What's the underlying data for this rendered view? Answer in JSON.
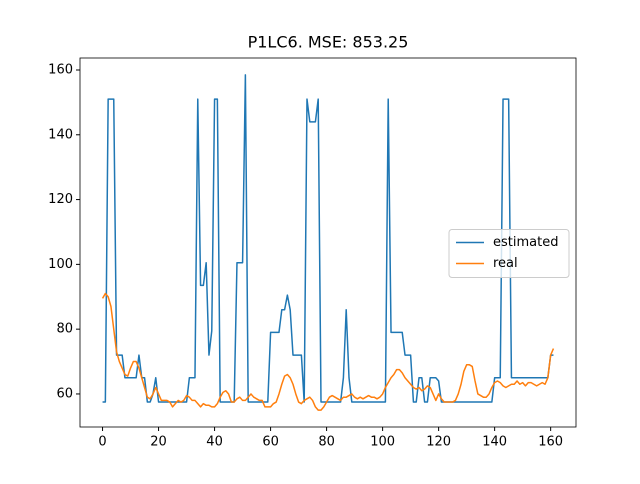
{
  "chart_data": {
    "type": "line",
    "title": "P1LC6. MSE: 853.25",
    "x": [
      0,
      1,
      2,
      3,
      4,
      5,
      6,
      7,
      8,
      9,
      10,
      11,
      12,
      13,
      14,
      15,
      16,
      17,
      18,
      19,
      20,
      21,
      22,
      23,
      24,
      25,
      26,
      27,
      28,
      29,
      30,
      31,
      32,
      33,
      34,
      35,
      36,
      37,
      38,
      39,
      40,
      41,
      42,
      43,
      44,
      45,
      46,
      47,
      48,
      49,
      50,
      51,
      52,
      53,
      54,
      55,
      56,
      57,
      58,
      59,
      60,
      61,
      62,
      63,
      64,
      65,
      66,
      67,
      68,
      69,
      70,
      71,
      72,
      73,
      74,
      75,
      76,
      77,
      78,
      79,
      80,
      81,
      82,
      83,
      84,
      85,
      86,
      87,
      88,
      89,
      90,
      91,
      92,
      93,
      94,
      95,
      96,
      97,
      98,
      99,
      100,
      101,
      102,
      103,
      104,
      105,
      106,
      107,
      108,
      109,
      110,
      111,
      112,
      113,
      114,
      115,
      116,
      117,
      118,
      119,
      120,
      121,
      122,
      123,
      124,
      125,
      126,
      127,
      128,
      129,
      130,
      131,
      132,
      133,
      134,
      135,
      136,
      137,
      138,
      139,
      140,
      141,
      142,
      143,
      144,
      145,
      146,
      147,
      148,
      149,
      150,
      151,
      152,
      153,
      154,
      155,
      156,
      157,
      158,
      159,
      160,
      161
    ],
    "series": [
      {
        "name": "estimated",
        "color": "#1f77b4",
        "values": [
          57.5,
          57.5,
          151,
          151,
          151,
          72,
          72,
          72,
          65,
          65,
          65,
          65,
          65,
          72,
          65,
          65,
          57.5,
          57.5,
          60,
          65,
          57.5,
          57.5,
          57.5,
          57.5,
          57.5,
          57.5,
          57.5,
          57.5,
          57.5,
          57.5,
          57.5,
          65,
          65,
          65,
          151,
          93.5,
          93.5,
          100.5,
          72,
          79.5,
          151,
          151,
          57.5,
          57.5,
          57.5,
          57.5,
          57.5,
          57.5,
          100.5,
          100.5,
          100.5,
          158.5,
          57.5,
          57.5,
          57.5,
          57.5,
          57.5,
          57.5,
          57.5,
          57.5,
          79,
          79,
          79,
          79,
          86,
          86,
          90.5,
          86,
          72,
          72,
          72,
          72,
          57.5,
          151,
          144,
          144,
          144,
          151,
          57.5,
          57.5,
          57.5,
          57.5,
          57.5,
          57.5,
          57.5,
          57.5,
          65,
          86,
          65,
          57.5,
          57.5,
          57.5,
          57.5,
          57.5,
          57.5,
          57.5,
          57.5,
          57.5,
          57.5,
          57.5,
          57.5,
          57.5,
          151,
          79,
          79,
          79,
          79,
          79,
          72,
          72,
          72,
          57.5,
          57.5,
          65,
          65,
          57.5,
          57.5,
          65,
          65,
          65,
          64,
          57.5,
          57.5,
          57.5,
          57.5,
          57.5,
          57.5,
          57.5,
          57.5,
          57.5,
          57.5,
          57.5,
          57.5,
          57.5,
          57.5,
          57.5,
          57.5,
          57.5,
          57.5,
          57.5,
          65,
          65,
          65,
          151,
          151,
          151,
          65,
          65,
          65,
          65,
          65,
          65,
          65,
          65,
          65,
          65,
          65,
          65,
          65,
          65,
          72,
          72
        ]
      },
      {
        "name": "real",
        "color": "#ff7f0e",
        "values": [
          89.5,
          91,
          90,
          87,
          80,
          73,
          70,
          68,
          66,
          65.5,
          68,
          70,
          70,
          68,
          65,
          62,
          59,
          58.5,
          60,
          62,
          60,
          58,
          58,
          58,
          57.5,
          56,
          57,
          58,
          57.5,
          58,
          59.5,
          59,
          58,
          58,
          57,
          56,
          57,
          56.5,
          56.5,
          56,
          56,
          57,
          59,
          60.5,
          61,
          60,
          57.5,
          57.5,
          58.5,
          59,
          58,
          58,
          59,
          60,
          59,
          58.5,
          58,
          58,
          56,
          56,
          56,
          57,
          57.5,
          60,
          63,
          65.5,
          66,
          65,
          63,
          60,
          57.5,
          57,
          58,
          58.5,
          59,
          58,
          56,
          55,
          55,
          56,
          57.5,
          59,
          59.5,
          59,
          58.5,
          58,
          59,
          59,
          59.5,
          60,
          59,
          58.5,
          59,
          58.5,
          59,
          59.5,
          59,
          59,
          58.5,
          59,
          60,
          62,
          63.5,
          65,
          66,
          67.5,
          67.5,
          66.5,
          65,
          64,
          63,
          62,
          61.5,
          62,
          61,
          61.5,
          62.5,
          62,
          60,
          58,
          60,
          58.5,
          57.5,
          57.5,
          57.5,
          57.5,
          58,
          60,
          63,
          67,
          69,
          69,
          68.5,
          64,
          60,
          59.5,
          59,
          59,
          60,
          62,
          63.5,
          64,
          63.5,
          62.5,
          62,
          62.5,
          63,
          63,
          64,
          63,
          63.5,
          62.5,
          63.5,
          63.5,
          63,
          62.5,
          63,
          63.5,
          63,
          65,
          72,
          74
        ]
      }
    ],
    "xlim": [
      -8.05,
      169.05
    ],
    "ylim": [
      49.8,
      163.7
    ],
    "xticks": [
      0,
      20,
      40,
      60,
      80,
      100,
      120,
      140,
      160
    ],
    "yticks": [
      60,
      80,
      100,
      120,
      140,
      160
    ],
    "legend": "center right"
  }
}
